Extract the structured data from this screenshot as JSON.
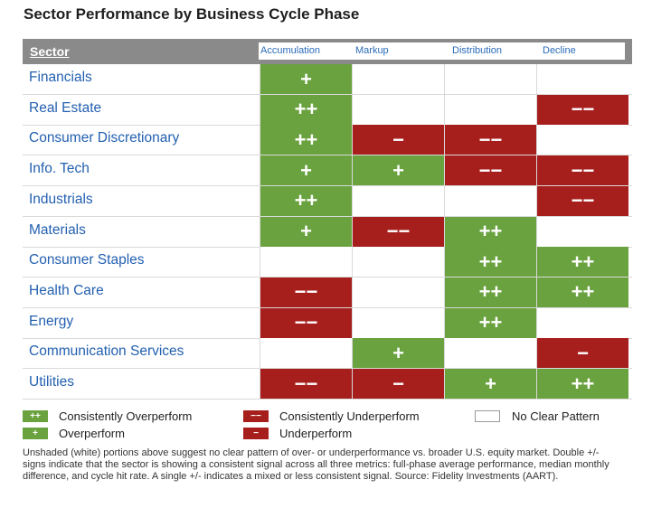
{
  "title": "Sector Performance by Business Cycle Phase",
  "header": {
    "sector_label": "Sector",
    "phases": [
      "Accumulation",
      "Markup",
      "Distribution",
      "Decline"
    ]
  },
  "colors": {
    "overperform": "#6aa23f",
    "underperform": "#a61f1d",
    "header_bg": "#8a8a8a",
    "sector_text": "#2360b0"
  },
  "chart_data": {
    "type": "table",
    "columns": [
      "Accumulation",
      "Markup",
      "Distribution",
      "Decline"
    ],
    "rows": [
      {
        "sector": "Financials",
        "cells": [
          "+",
          "",
          "",
          ""
        ]
      },
      {
        "sector": "Real Estate",
        "cells": [
          "++",
          "",
          "",
          "−−"
        ]
      },
      {
        "sector": "Consumer Discretionary",
        "cells": [
          "++",
          "−",
          "−−",
          ""
        ]
      },
      {
        "sector": "Info. Tech",
        "cells": [
          "+",
          "+",
          "−−",
          "−−"
        ]
      },
      {
        "sector": "Industrials",
        "cells": [
          "++",
          "",
          "",
          "−−"
        ]
      },
      {
        "sector": "Materials",
        "cells": [
          "+",
          "−−",
          "++",
          ""
        ]
      },
      {
        "sector": "Consumer Staples",
        "cells": [
          "",
          "",
          "++",
          "++"
        ]
      },
      {
        "sector": "Health Care",
        "cells": [
          "−−",
          "",
          "++",
          "++"
        ]
      },
      {
        "sector": "Energy",
        "cells": [
          "−−",
          "",
          "++",
          ""
        ]
      },
      {
        "sector": "Communication Services",
        "cells": [
          "",
          "+",
          "",
          "−"
        ]
      },
      {
        "sector": "Utilities",
        "cells": [
          "−−",
          "−",
          "+",
          "++"
        ]
      }
    ]
  },
  "legend": [
    {
      "symbol": "++",
      "kind": "green",
      "label": "Consistently Overperform"
    },
    {
      "symbol": "−−",
      "kind": "red",
      "label": "Consistently Underperform"
    },
    {
      "symbol": "",
      "kind": "white",
      "label": "No Clear Pattern"
    },
    {
      "symbol": "+",
      "kind": "green",
      "label": "Overperform"
    },
    {
      "symbol": "−",
      "kind": "red",
      "label": "Underperform"
    }
  ],
  "footnote": "Unshaded (white) portions above suggest no clear pattern of over- or underperformance vs. broader U.S. equity market. Double +/- signs indicate that the sector is showing a consistent signal across all three metrics: full-phase average performance, median monthly difference, and cycle hit rate. A single +/- indicates a mixed or less consistent signal. Source: Fidelity Investments (AART)."
}
